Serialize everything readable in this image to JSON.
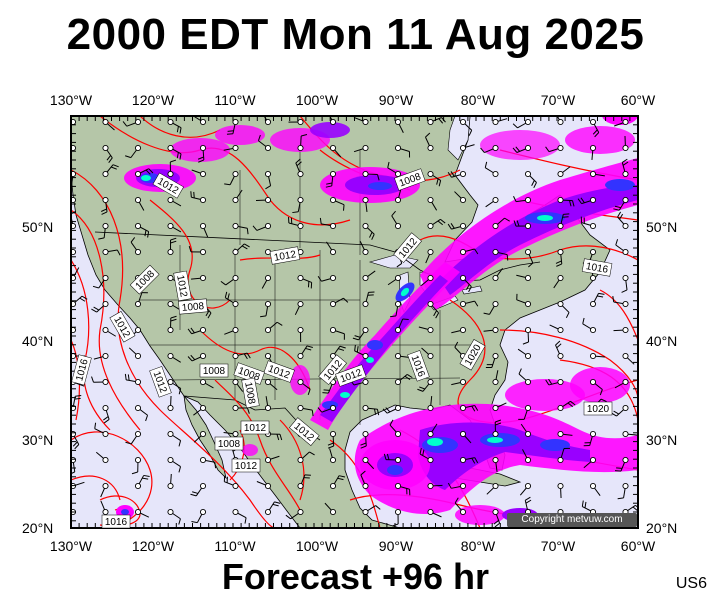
{
  "title": "2000 EDT Mon 11 Aug 2025",
  "footer": "Forecast +96 hr",
  "region_code": "US6",
  "copyright": "Copyright metvuw.com",
  "longitude_labels": [
    "130°W",
    "120°W",
    "110°W",
    "100°W",
    "90°W",
    "80°W",
    "70°W",
    "60°W"
  ],
  "latitude_labels": [
    "50°N",
    "40°N",
    "30°N",
    "20°N"
  ],
  "isobar_labels": [
    "1012",
    "1008",
    "1012",
    "1012",
    "1008",
    "1008",
    "1012",
    "1012",
    "1012",
    "1016",
    "1016",
    "1020",
    "1020",
    "1012",
    "1012",
    "1016",
    "1008",
    "1008",
    "1012",
    "1008",
    "1012",
    "1012",
    "1008",
    "1012",
    "1016"
  ],
  "colors": {
    "ocean": "#e6e6fa",
    "land": "#b5c6a8",
    "isobar": "#ff0000",
    "rain_light": "#ff00ff",
    "rain_medium": "#9900ff",
    "rain_heavy": "#3333ff",
    "rain_extreme": "#00ffcc"
  }
}
